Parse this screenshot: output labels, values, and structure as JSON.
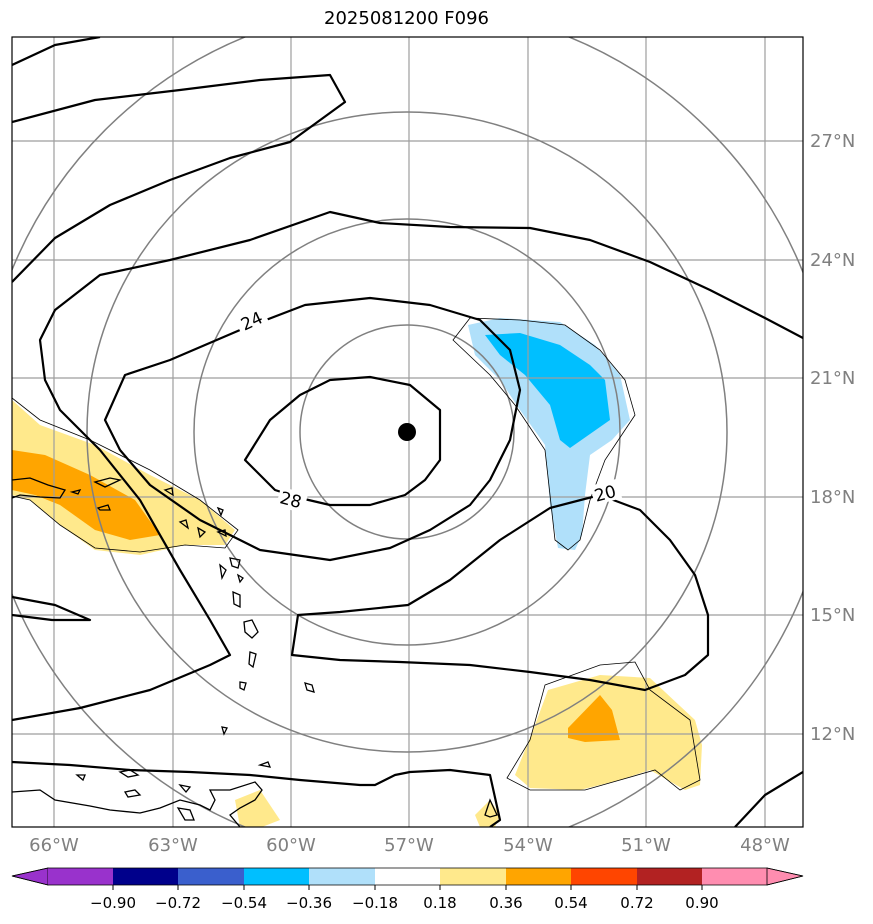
{
  "title": "2025081200 F096",
  "map": {
    "lon_labels": [
      "66°W",
      "63°W",
      "60°W",
      "57°W",
      "54°W",
      "51°W",
      "48°W"
    ],
    "lat_labels": [
      "27°N",
      "24°N",
      "21°N",
      "18°N",
      "15°N",
      "12°N"
    ],
    "contour_labels": [
      "24",
      "28",
      "20"
    ],
    "storm_center": {
      "lon": "57°W",
      "lat": "19.6°N"
    }
  },
  "colorbar": {
    "labels": [
      "−0.90",
      "−0.72",
      "−0.54",
      "−0.36",
      "−0.18",
      "0.18",
      "0.36",
      "0.54",
      "0.72",
      "0.90"
    ],
    "colors": [
      "#9932cc",
      "#00008b",
      "#3a5fcd",
      "#00bfff",
      "#b0e0fa",
      "#ffffff",
      "#ffe98c",
      "#ffa500",
      "#ff4500",
      "#b22222",
      "#ff8db0"
    ]
  }
}
